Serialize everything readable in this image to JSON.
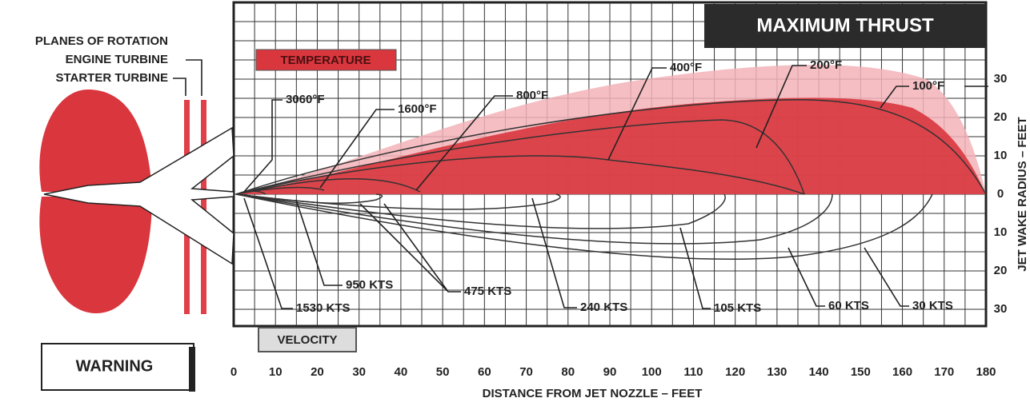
{
  "title": "MAXIMUM THRUST",
  "legend": {
    "temperature": "TEMPERATURE",
    "velocity": "VELOCITY"
  },
  "warning": "WARNING",
  "planes": [
    "PLANES OF ROTATION",
    "ENGINE TURBINE",
    "STARTER TURBINE"
  ],
  "x_axis": {
    "label": "DISTANCE FROM JET NOZZLE – FEET",
    "ticks": [
      0,
      10,
      20,
      30,
      40,
      50,
      60,
      70,
      80,
      90,
      100,
      110,
      120,
      130,
      140,
      150,
      160,
      170,
      180
    ]
  },
  "y_axis": {
    "label": "JET WAKE RADIUS – FEET",
    "ticks": [
      30,
      20,
      10,
      0,
      {
        "value": -10,
        "label": "10"
      },
      {
        "value": -20,
        "label": "20"
      },
      {
        "value": -30,
        "label": "30"
      }
    ]
  },
  "temperature_labels": [
    "3060°F",
    "1600°F",
    "800°F",
    "400°F",
    "200°F",
    "100°F"
  ],
  "velocity_labels": [
    "1530 KTS",
    "950 KTS",
    "475 KTS",
    "240 KTS",
    "105 KTS",
    "60 KTS",
    "30 KTS"
  ]
}
